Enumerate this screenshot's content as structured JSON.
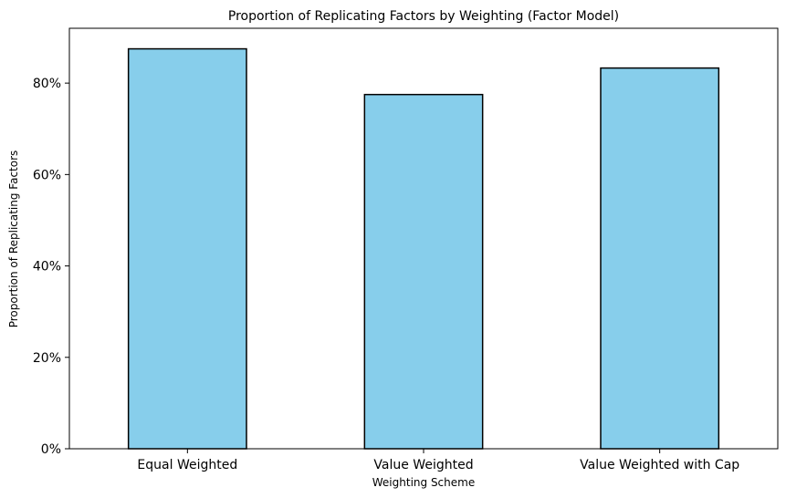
{
  "chart_data": {
    "type": "bar",
    "title": "Proportion of Replicating Factors by Weighting (Factor Model)",
    "xlabel": "Weighting Scheme",
    "ylabel": "Proportion of Replicating Factors",
    "categories": [
      "Equal Weighted",
      "Value Weighted",
      "Value Weighted with Cap"
    ],
    "values": [
      0.875,
      0.775,
      0.833
    ],
    "ylim": [
      0,
      0.92
    ],
    "yticks": [
      0,
      0.2,
      0.4,
      0.6,
      0.8
    ],
    "ytick_labels": [
      "0%",
      "20%",
      "40%",
      "60%",
      "80%"
    ],
    "grid": false,
    "bar_color": "#87ceeb",
    "bar_edge_color": "#000000"
  }
}
